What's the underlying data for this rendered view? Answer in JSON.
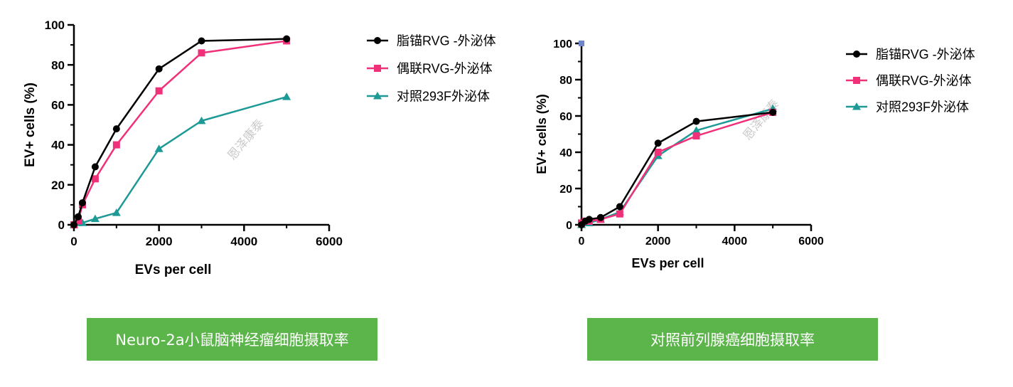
{
  "chart_data": [
    {
      "type": "line",
      "title": "",
      "xlabel": "EVs per cell",
      "ylabel": "EV+ cells (%)",
      "xlim": [
        0,
        6000
      ],
      "ylim": [
        0,
        100
      ],
      "xticks": [
        0,
        2000,
        4000,
        6000
      ],
      "yticks": [
        0,
        20,
        40,
        60,
        80,
        100
      ],
      "x_minor_step": 1000,
      "y_minor_step": 10,
      "grid": false,
      "legend_position": "right",
      "series": [
        {
          "name": "脂锚RVG -外泌体",
          "color": "#000000",
          "marker": "circle",
          "x": [
            0,
            100,
            200,
            500,
            1000,
            2000,
            3000,
            5000
          ],
          "y": [
            0,
            4,
            11,
            29,
            48,
            78,
            92,
            93
          ]
        },
        {
          "name": "偶联RVG-外泌体",
          "color": "#f0317a",
          "marker": "square",
          "x": [
            0,
            100,
            200,
            500,
            1000,
            2000,
            3000,
            5000
          ],
          "y": [
            0,
            2,
            10,
            23,
            40,
            67,
            86,
            92
          ]
        },
        {
          "name": "对照293F外泌体",
          "color": "#1e9a96",
          "marker": "triangle",
          "x": [
            0,
            100,
            200,
            500,
            1000,
            2000,
            3000,
            5000
          ],
          "y": [
            0,
            1,
            1,
            3,
            6,
            38,
            52,
            64
          ]
        }
      ],
      "watermark": "恩泽康泰"
    },
    {
      "type": "line",
      "title": "",
      "xlabel": "EVs per cell",
      "ylabel": "EV+ cells (%)",
      "xlim": [
        0,
        6000
      ],
      "ylim": [
        0,
        100
      ],
      "xticks": [
        0,
        2000,
        4000,
        6000
      ],
      "yticks": [
        0,
        20,
        40,
        60,
        80,
        100
      ],
      "x_minor_step": 1000,
      "y_minor_step": 10,
      "grid": false,
      "legend_position": "right",
      "series": [
        {
          "name": "脂锚RVG -外泌体",
          "color": "#000000",
          "marker": "circle",
          "x": [
            0,
            100,
            200,
            500,
            1000,
            2000,
            3000,
            5000
          ],
          "y": [
            0,
            2,
            3,
            4,
            10,
            45,
            57,
            62
          ]
        },
        {
          "name": "偶联RVG-外泌体",
          "color": "#f0317a",
          "marker": "square",
          "x": [
            0,
            100,
            200,
            500,
            1000,
            2000,
            3000,
            5000
          ],
          "y": [
            1,
            2,
            2,
            3,
            6,
            40,
            49,
            62
          ]
        },
        {
          "name": "对照293F外泌体",
          "color": "#1e9a96",
          "marker": "triangle",
          "x": [
            0,
            100,
            200,
            500,
            1000,
            2000,
            3000,
            5000
          ],
          "y": [
            0,
            1,
            1,
            3,
            7,
            38,
            52,
            64
          ]
        }
      ],
      "extra_points": [
        {
          "x": 0,
          "y": 100,
          "color": "#6f86c8"
        }
      ],
      "watermark": "恩泽康泰"
    }
  ],
  "captions": {
    "left": "Neuro-2a小鼠脑神经瘤细胞摄取率",
    "right": "对照前列腺癌细胞摄取率"
  }
}
